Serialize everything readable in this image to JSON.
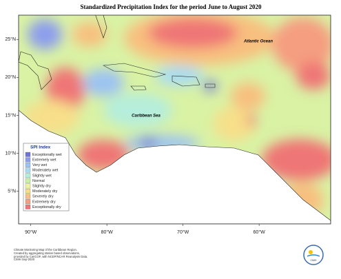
{
  "map": {
    "title": "Standardized Precipitation Index for the period June to August 2020",
    "lonlim": [
      -91.6,
      -50.6
    ],
    "latlim": [
      0.7,
      28.2
    ],
    "lon_ticks": [
      {
        "value": -90,
        "label": "90°W"
      },
      {
        "value": -80,
        "label": "80°W"
      },
      {
        "value": -70,
        "label": "70°W"
      },
      {
        "value": -60,
        "label": "60°W"
      }
    ],
    "lat_ticks": [
      {
        "value": 25,
        "label": "25°N"
      },
      {
        "value": 20,
        "label": "20°N"
      },
      {
        "value": 15,
        "label": "15°N"
      },
      {
        "value": 10,
        "label": "10°N"
      },
      {
        "value": 5,
        "label": "5°N"
      }
    ],
    "places": [
      {
        "label": "Atlantic Ocean"
      },
      {
        "label": "Caribbean Sea"
      }
    ],
    "legend": {
      "title": "SPI Index",
      "items": [
        {
          "label": "Exceptionally wet",
          "color": "#6f72d8"
        },
        {
          "label": "Extremely wet",
          "color": "#8d9ded"
        },
        {
          "label": "Very wet",
          "color": "#9cc3f2"
        },
        {
          "label": "Moderately wet",
          "color": "#a9dcf2"
        },
        {
          "label": "Slightly wet",
          "color": "#b5eedc"
        },
        {
          "label": "Normal",
          "color": "#c9f2a8"
        },
        {
          "label": "Slightly dry",
          "color": "#eef3a0"
        },
        {
          "label": "Moderately dry",
          "color": "#f7df8a"
        },
        {
          "label": "Severely dry",
          "color": "#f8bf7f"
        },
        {
          "label": "Extremely dry",
          "color": "#f59e80"
        },
        {
          "label": "Exceptionally dry",
          "color": "#ef7676"
        }
      ]
    },
    "footer": [
      "Climate Monitoring Map of the Caribbean Region.",
      "Created by aggregating station based observations,",
      "provided by CariCOF, with NCEP/NCAR Reanalysis Data."
    ],
    "credit": "CIMH Sep-2020",
    "logo": "CIMH"
  }
}
